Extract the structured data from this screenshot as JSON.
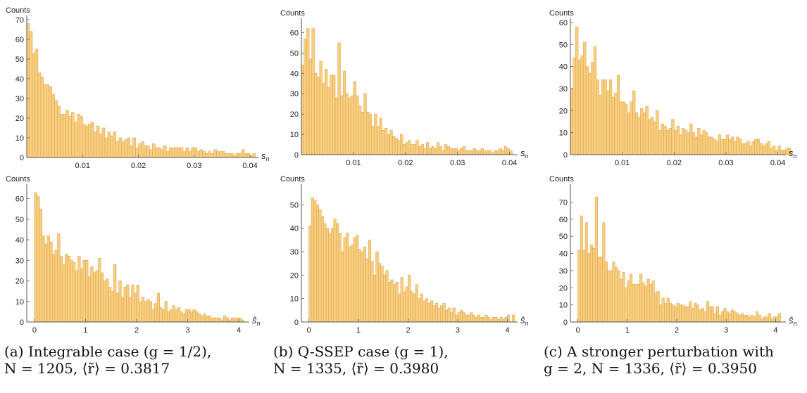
{
  "figure": {
    "bar_fill": "#f8cf7f",
    "bar_edge": "#e0a552",
    "captions": [
      {
        "line1": "(a) Integrable case (g = 1/2),",
        "line2": "N = 1205, ⟨r̃⟩ = 0.3817"
      },
      {
        "line1": "(b) Q-SSEP case (g = 1),",
        "line2": "N = 1335, ⟨r̃⟩ = 0.3980"
      },
      {
        "line1": "(c) A stronger perturbation with",
        "line2": "g = 2, N = 1336, ⟨r̃⟩ = 0.3950"
      }
    ]
  },
  "chart_data": [
    {
      "type": "bar",
      "ylabel": "Counts",
      "xlabel": "s_n",
      "xlim": [
        0,
        0.041
      ],
      "ylim": [
        0,
        70
      ],
      "xticks": [
        {
          "v": 0.01,
          "l": "0.01"
        },
        {
          "v": 0.02,
          "l": "0.02"
        },
        {
          "v": 0.03,
          "l": "0.03"
        },
        {
          "v": 0.04,
          "l": "0.04"
        }
      ],
      "yticks": [
        {
          "v": 0,
          "l": "0"
        },
        {
          "v": 10,
          "l": "10"
        },
        {
          "v": 20,
          "l": "20"
        },
        {
          "v": 30,
          "l": "30"
        },
        {
          "v": 40,
          "l": "40"
        },
        {
          "v": 50,
          "l": "50"
        },
        {
          "v": 60,
          "l": "60"
        },
        {
          "v": 70,
          "l": "70"
        }
      ],
      "bin_width": 0.0005,
      "bin_start": 0,
      "values": [
        68,
        64,
        53,
        55,
        43,
        41,
        37,
        37,
        36,
        32,
        29,
        26,
        22,
        22,
        24,
        21,
        23,
        18,
        22,
        21,
        17,
        16,
        17,
        18,
        13,
        16,
        12,
        15,
        10,
        13,
        11,
        13,
        8,
        10,
        8,
        9,
        10,
        6,
        10,
        5,
        7,
        8,
        6,
        6,
        4,
        7,
        5,
        5,
        4,
        6,
        3,
        5,
        5,
        5,
        5,
        5,
        3,
        5,
        3,
        5,
        5,
        3,
        4,
        3,
        2,
        3,
        2,
        4,
        3,
        3,
        3,
        2,
        2,
        2,
        1,
        2,
        2,
        4,
        2,
        2,
        1,
        2
      ]
    },
    {
      "type": "bar",
      "ylabel": "Counts",
      "xlabel": "s_n",
      "xlim": [
        0,
        0.041
      ],
      "ylim": [
        0,
        65
      ],
      "xticks": [
        {
          "v": 0.01,
          "l": "0.01"
        },
        {
          "v": 0.02,
          "l": "0.02"
        },
        {
          "v": 0.03,
          "l": "0.03"
        },
        {
          "v": 0.04,
          "l": "0.04"
        }
      ],
      "yticks": [
        {
          "v": 0,
          "l": "0"
        },
        {
          "v": 10,
          "l": "10"
        },
        {
          "v": 20,
          "l": "20"
        },
        {
          "v": 30,
          "l": "30"
        },
        {
          "v": 40,
          "l": "40"
        },
        {
          "v": 50,
          "l": "50"
        },
        {
          "v": 60,
          "l": "60"
        }
      ],
      "bin_width": 0.0005,
      "bin_start": 0,
      "values": [
        44,
        57,
        62,
        47,
        62,
        40,
        38,
        46,
        35,
        42,
        33,
        39,
        39,
        28,
        55,
        29,
        41,
        30,
        28,
        29,
        36,
        29,
        24,
        21,
        30,
        21,
        20,
        14,
        20,
        14,
        18,
        12,
        13,
        10,
        12,
        9,
        8,
        7,
        10,
        5,
        6,
        7,
        5,
        5,
        7,
        4,
        5,
        3,
        6,
        3,
        4,
        3,
        6,
        4,
        2,
        5,
        4,
        3,
        3,
        3,
        2,
        3,
        4,
        2,
        2,
        2,
        3,
        2,
        2,
        3,
        2,
        2,
        2,
        1,
        2,
        2,
        3,
        2,
        4,
        3,
        2
      ]
    },
    {
      "type": "bar",
      "ylabel": "Counts",
      "xlabel": "s_n",
      "xlim": [
        0,
        0.041
      ],
      "ylim": [
        0,
        60
      ],
      "xticks": [
        {
          "v": 0.01,
          "l": "0.01"
        },
        {
          "v": 0.02,
          "l": "0.02"
        },
        {
          "v": 0.03,
          "l": "0.03"
        },
        {
          "v": 0.04,
          "l": "0.04"
        }
      ],
      "yticks": [
        {
          "v": 0,
          "l": "0"
        },
        {
          "v": 10,
          "l": "10"
        },
        {
          "v": 20,
          "l": "20"
        },
        {
          "v": 30,
          "l": "30"
        },
        {
          "v": 40,
          "l": "40"
        },
        {
          "v": 50,
          "l": "50"
        },
        {
          "v": 60,
          "l": "60"
        }
      ],
      "bin_width": 0.0005,
      "bin_start": 0,
      "values": [
        30,
        44,
        58,
        43,
        45,
        51,
        40,
        37,
        42,
        49,
        34,
        27,
        34,
        34,
        29,
        34,
        26,
        28,
        36,
        24,
        24,
        23,
        19,
        24,
        29,
        19,
        17,
        21,
        19,
        22,
        16,
        17,
        15,
        20,
        11,
        14,
        13,
        11,
        12,
        16,
        11,
        13,
        9,
        12,
        11,
        10,
        14,
        10,
        8,
        12,
        9,
        11,
        10,
        8,
        8,
        7,
        6,
        9,
        7,
        7,
        9,
        7,
        8,
        6,
        8,
        7,
        5,
        5,
        6,
        4,
        6,
        7,
        7,
        5,
        4,
        5,
        6,
        3,
        4,
        2,
        4,
        2,
        2,
        3,
        3
      ]
    },
    {
      "type": "bar",
      "ylabel": "Counts",
      "xlabel": "ŝ_n",
      "xlim": [
        -0.15,
        4.15
      ],
      "ylim": [
        0,
        65
      ],
      "xticks": [
        {
          "v": 0,
          "l": "0"
        },
        {
          "v": 1,
          "l": "1"
        },
        {
          "v": 2,
          "l": "2"
        },
        {
          "v": 3,
          "l": "3"
        },
        {
          "v": 4,
          "l": "4"
        }
      ],
      "yticks": [
        {
          "v": 0,
          "l": "0"
        },
        {
          "v": 10,
          "l": "10"
        },
        {
          "v": 20,
          "l": "20"
        },
        {
          "v": 30,
          "l": "30"
        },
        {
          "v": 40,
          "l": "40"
        },
        {
          "v": 50,
          "l": "50"
        },
        {
          "v": 60,
          "l": "60"
        }
      ],
      "bin_width": 0.05,
      "bin_start": 0,
      "values": [
        63,
        61,
        55,
        42,
        38,
        42,
        39,
        33,
        35,
        43,
        32,
        28,
        33,
        32,
        30,
        29,
        25,
        32,
        26,
        30,
        30,
        22,
        27,
        24,
        25,
        31,
        24,
        20,
        21,
        17,
        15,
        28,
        14,
        20,
        12,
        17,
        18,
        12,
        18,
        14,
        18,
        10,
        12,
        10,
        11,
        10,
        6,
        9,
        14,
        7,
        6,
        10,
        5,
        6,
        8,
        6,
        7,
        5,
        4,
        6,
        6,
        5,
        6,
        5,
        4,
        3,
        4,
        3,
        3,
        2,
        2,
        2,
        2,
        1,
        3,
        2,
        1,
        2,
        2,
        2,
        2,
        1
      ]
    },
    {
      "type": "bar",
      "ylabel": "Counts",
      "xlabel": "ŝ_n",
      "xlim": [
        -0.15,
        4.15
      ],
      "ylim": [
        0,
        57
      ],
      "xticks": [
        {
          "v": 0,
          "l": "0"
        },
        {
          "v": 1,
          "l": "1"
        },
        {
          "v": 2,
          "l": "2"
        },
        {
          "v": 3,
          "l": "3"
        },
        {
          "v": 4,
          "l": "4"
        }
      ],
      "yticks": [
        {
          "v": 0,
          "l": "0"
        },
        {
          "v": 10,
          "l": "10"
        },
        {
          "v": 20,
          "l": "20"
        },
        {
          "v": 30,
          "l": "30"
        },
        {
          "v": 40,
          "l": "40"
        },
        {
          "v": 50,
          "l": "50"
        }
      ],
      "bin_width": 0.05,
      "bin_start": 0,
      "values": [
        41,
        53,
        52,
        50,
        48,
        45,
        42,
        40,
        38,
        40,
        44,
        42,
        38,
        30,
        36,
        38,
        32,
        33,
        36,
        37,
        31,
        30,
        32,
        27,
        35,
        26,
        20,
        30,
        25,
        24,
        20,
        22,
        17,
        18,
        16,
        17,
        12,
        19,
        13,
        15,
        20,
        13,
        12,
        16,
        10,
        12,
        9,
        10,
        8,
        9,
        7,
        8,
        6,
        7,
        8,
        5,
        6,
        4,
        6,
        3,
        4,
        5,
        4,
        3,
        3,
        4,
        3,
        2,
        3,
        2,
        2,
        3,
        2,
        1,
        2,
        2,
        1,
        2,
        1,
        2,
        3,
        0,
        3
      ]
    },
    {
      "type": "bar",
      "ylabel": "Counts",
      "xlabel": "ŝ_n",
      "xlim": [
        -0.15,
        4.15
      ],
      "ylim": [
        0,
        78
      ],
      "xticks": [
        {
          "v": 0,
          "l": "0"
        },
        {
          "v": 1,
          "l": "1"
        },
        {
          "v": 2,
          "l": "2"
        },
        {
          "v": 3,
          "l": "3"
        },
        {
          "v": 4,
          "l": "4"
        }
      ],
      "yticks": [
        {
          "v": 0,
          "l": "0"
        },
        {
          "v": 10,
          "l": "10"
        },
        {
          "v": 20,
          "l": "20"
        },
        {
          "v": 30,
          "l": "30"
        },
        {
          "v": 40,
          "l": "40"
        },
        {
          "v": 50,
          "l": "50"
        },
        {
          "v": 60,
          "l": "60"
        },
        {
          "v": 70,
          "l": "70"
        }
      ],
      "bin_width": 0.05,
      "bin_start": 0,
      "values": [
        42,
        62,
        42,
        58,
        40,
        45,
        43,
        73,
        38,
        38,
        58,
        35,
        30,
        30,
        35,
        32,
        30,
        25,
        29,
        20,
        24,
        28,
        22,
        22,
        22,
        28,
        23,
        21,
        25,
        22,
        24,
        17,
        18,
        10,
        14,
        11,
        14,
        11,
        10,
        9,
        11,
        10,
        10,
        9,
        9,
        12,
        8,
        11,
        10,
        7,
        8,
        6,
        12,
        9,
        9,
        5,
        9,
        4,
        6,
        8,
        6,
        5,
        7,
        6,
        5,
        4,
        5,
        4,
        4,
        3,
        4,
        3,
        6,
        4,
        2,
        3,
        3,
        5,
        2,
        3,
        3,
        5
      ]
    }
  ]
}
